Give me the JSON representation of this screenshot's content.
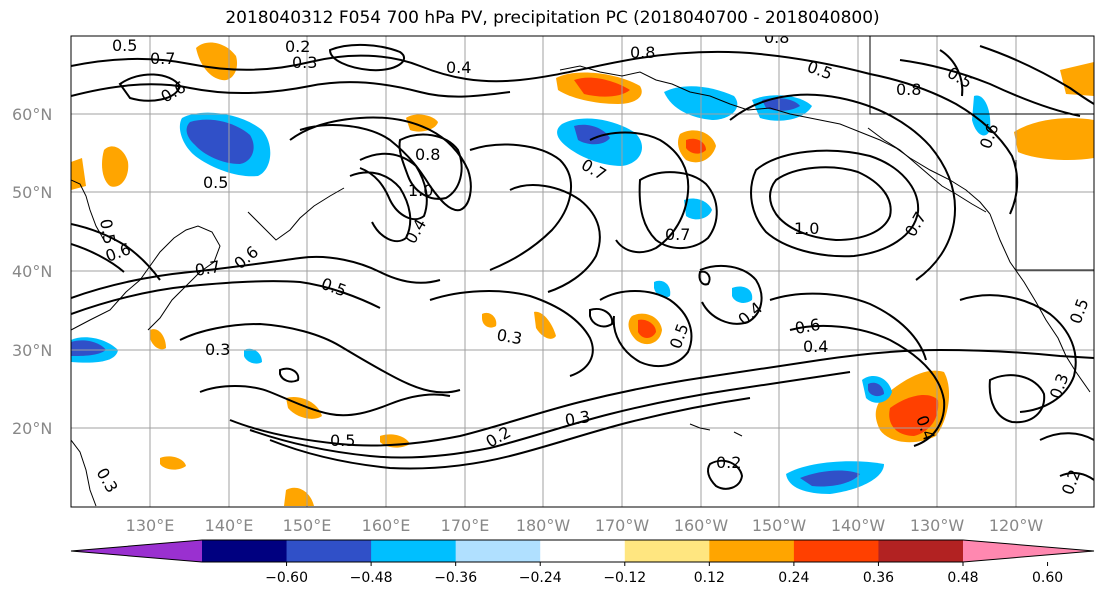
{
  "title": "2018040312 F054 700 hPa PV, precipitation PC (2018040700 - 2018040800)",
  "map": {
    "lat_labels": [
      "60°N",
      "50°N",
      "40°N",
      "30°N",
      "20°N"
    ],
    "lon_labels": [
      "130°E",
      "140°E",
      "150°E",
      "160°E",
      "170°E",
      "180°W",
      "170°W",
      "160°W",
      "150°W",
      "140°W",
      "130°W",
      "120°W"
    ],
    "contour_labels": [
      "0.5",
      "0.7",
      "0.6",
      "0.2",
      "0.3",
      "0.4",
      "0.8",
      "0.8",
      "0.5",
      "0.5",
      "0.6",
      "0.8",
      "0.8",
      "0.5",
      "1.0",
      "0.5",
      "0.4",
      "0.7",
      "0.7",
      "1.0",
      "0.7",
      "0.6",
      "0.5",
      "0.6",
      "0.7",
      "0.5",
      "0.3",
      "0.3",
      "0.5",
      "0.4",
      "0.6",
      "0.4",
      "0.4",
      "0.3",
      "0.5",
      "0.2",
      "0.3",
      "0.2",
      "0.3",
      "0.2"
    ],
    "colors": {
      "grid": "#a0a0a0",
      "contour": "#000000",
      "coast": "#000000"
    }
  },
  "colorbar": {
    "tick_labels": [
      "−0.60",
      "−0.48",
      "−0.36",
      "−0.24",
      "−0.12",
      "0.12",
      "0.24",
      "0.36",
      "0.48",
      "0.60"
    ],
    "colors": [
      "#9a30d0",
      "#000080",
      "#3050c8",
      "#00bfff",
      "#b0e0ff",
      "#ffffff",
      "#ffe680",
      "#ffa500",
      "#ff4000",
      "#b22222",
      "#ff88b0"
    ]
  }
}
